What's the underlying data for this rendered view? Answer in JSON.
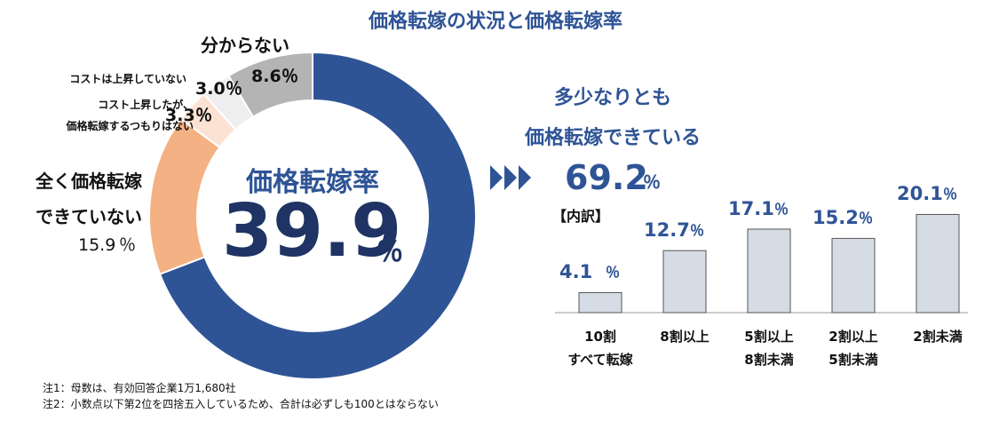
{
  "title": "価格転嫁の状況と価格転嫁率",
  "chart_data": [
    {
      "type": "pie",
      "categories": [
        "多少なりとも\n価格転嫁できている",
        "全く価格転嫁\nできていない",
        "コスト上昇したが、\n価格転嫁するつもりはない",
        "コストは上昇していない",
        "分からない"
      ],
      "values": [
        69.2,
        15.9,
        3.3,
        3.0,
        8.6
      ],
      "value_labels": [
        "69.2",
        "15.9",
        "3.3",
        "3.0",
        "8.6"
      ],
      "unit": "％",
      "colors": [
        "#2f5496",
        "#f4b183",
        "#fbe2d3",
        "#eeeeee",
        "#b4b4b4"
      ],
      "center_label": "価格転嫁率",
      "center_value": 39.9
    },
    {
      "type": "bar",
      "title": "【内訳】",
      "categories": [
        "10割\nすべて転嫁",
        "8割以上",
        "5割以上\n8割未満",
        "2割以上\n5割未満",
        "2割未満"
      ],
      "values": [
        4.1,
        12.7,
        17.1,
        15.2,
        20.1
      ],
      "unit": "％",
      "color": "#d6dce5"
    }
  ],
  "notes": [
    "注1：母数は、有効回答企業1万1,680社",
    "注2：小数点以下第2位を四捨五入しているため、合計は必ずしも100とはならない"
  ]
}
